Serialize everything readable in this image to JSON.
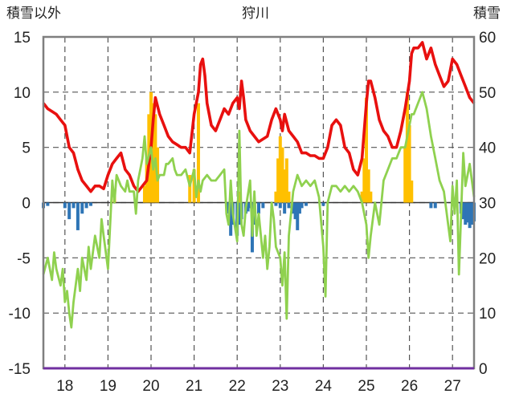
{
  "chart_data": {
    "type": "line",
    "title": "狩川",
    "ylabel_left": "積雪以外",
    "ylabel_right": "積雪",
    "ylim_left": [
      -15,
      15
    ],
    "ylim_right": [
      0,
      60
    ],
    "yticks_left": [
      "15",
      "10",
      "5",
      "0",
      "-5",
      "-10",
      "-15"
    ],
    "yticks_right": [
      "60",
      "50",
      "40",
      "30",
      "20",
      "10",
      "0"
    ],
    "xticks": [
      "18",
      "19",
      "20",
      "21",
      "22",
      "23",
      "24",
      "25",
      "26",
      "27"
    ],
    "xlim": [
      17.5,
      27.5
    ],
    "series": [
      {
        "axis": "right",
        "color": "#e8100f",
        "points": [
          [
            17.5,
            48
          ],
          [
            17.6,
            47
          ],
          [
            17.7,
            46.5
          ],
          [
            17.8,
            46
          ],
          [
            17.9,
            45
          ],
          [
            18.0,
            44
          ],
          [
            18.05,
            42
          ],
          [
            18.1,
            40
          ],
          [
            18.2,
            39
          ],
          [
            18.3,
            36
          ],
          [
            18.4,
            34
          ],
          [
            18.5,
            33
          ],
          [
            18.6,
            32
          ],
          [
            18.7,
            33
          ],
          [
            18.8,
            33
          ],
          [
            18.9,
            32.5
          ],
          [
            19.0,
            35
          ],
          [
            19.1,
            37
          ],
          [
            19.2,
            38
          ],
          [
            19.3,
            39
          ],
          [
            19.4,
            36
          ],
          [
            19.5,
            35
          ],
          [
            19.6,
            33
          ],
          [
            19.7,
            32
          ],
          [
            19.8,
            33
          ],
          [
            19.9,
            34
          ],
          [
            20.0,
            40
          ],
          [
            20.05,
            45
          ],
          [
            20.1,
            49
          ],
          [
            20.2,
            46
          ],
          [
            20.3,
            44
          ],
          [
            20.4,
            42
          ],
          [
            20.5,
            41
          ],
          [
            20.6,
            40.5
          ],
          [
            20.7,
            40
          ],
          [
            20.8,
            40
          ],
          [
            20.9,
            39
          ],
          [
            21.0,
            46
          ],
          [
            21.05,
            48
          ],
          [
            21.1,
            50
          ],
          [
            21.15,
            55
          ],
          [
            21.2,
            56
          ],
          [
            21.25,
            53
          ],
          [
            21.3,
            48
          ],
          [
            21.4,
            44
          ],
          [
            21.5,
            43
          ],
          [
            21.6,
            45
          ],
          [
            21.7,
            47
          ],
          [
            21.8,
            46
          ],
          [
            21.9,
            48
          ],
          [
            22.0,
            49
          ],
          [
            22.05,
            47
          ],
          [
            22.1,
            52
          ],
          [
            22.15,
            49
          ],
          [
            22.2,
            45
          ],
          [
            22.3,
            43
          ],
          [
            22.4,
            42
          ],
          [
            22.5,
            41
          ],
          [
            22.6,
            41.5
          ],
          [
            22.7,
            42
          ],
          [
            22.8,
            45
          ],
          [
            22.9,
            47
          ],
          [
            23.0,
            45
          ],
          [
            23.05,
            43
          ],
          [
            23.1,
            46
          ],
          [
            23.2,
            43
          ],
          [
            23.3,
            42
          ],
          [
            23.4,
            41
          ],
          [
            23.5,
            39
          ],
          [
            23.6,
            39
          ],
          [
            23.7,
            38.5
          ],
          [
            23.8,
            38.5
          ],
          [
            23.9,
            38
          ],
          [
            24.0,
            38
          ],
          [
            24.1,
            40
          ],
          [
            24.2,
            44
          ],
          [
            24.3,
            45
          ],
          [
            24.4,
            44
          ],
          [
            24.5,
            40
          ],
          [
            24.6,
            39
          ],
          [
            24.7,
            36
          ],
          [
            24.8,
            35
          ],
          [
            24.9,
            38
          ],
          [
            25.0,
            48
          ],
          [
            25.05,
            52
          ],
          [
            25.1,
            52
          ],
          [
            25.2,
            49
          ],
          [
            25.3,
            45
          ],
          [
            25.4,
            43
          ],
          [
            25.5,
            42
          ],
          [
            25.6,
            40
          ],
          [
            25.7,
            40
          ],
          [
            25.8,
            43
          ],
          [
            25.9,
            47
          ],
          [
            26.0,
            52
          ],
          [
            26.05,
            57
          ],
          [
            26.1,
            58
          ],
          [
            26.2,
            58
          ],
          [
            26.3,
            59
          ],
          [
            26.4,
            56
          ],
          [
            26.5,
            58
          ],
          [
            26.6,
            55
          ],
          [
            26.7,
            53
          ],
          [
            26.8,
            51
          ],
          [
            26.9,
            52
          ],
          [
            27.0,
            56
          ],
          [
            27.1,
            55
          ],
          [
            27.2,
            53
          ],
          [
            27.3,
            51
          ],
          [
            27.4,
            49
          ],
          [
            27.5,
            48
          ]
        ]
      },
      {
        "axis": "left",
        "color": "#8fd14f",
        "points": [
          [
            17.5,
            -6.5
          ],
          [
            17.6,
            -5
          ],
          [
            17.7,
            -7
          ],
          [
            17.75,
            -4.5
          ],
          [
            17.8,
            -6
          ],
          [
            17.9,
            -7.5
          ],
          [
            17.95,
            -6
          ],
          [
            18.0,
            -9
          ],
          [
            18.05,
            -8
          ],
          [
            18.1,
            -10
          ],
          [
            18.15,
            -11.3
          ],
          [
            18.2,
            -9
          ],
          [
            18.3,
            -6
          ],
          [
            18.35,
            -8
          ],
          [
            18.4,
            -5
          ],
          [
            18.5,
            -7
          ],
          [
            18.55,
            -4
          ],
          [
            18.6,
            -6
          ],
          [
            18.7,
            -3
          ],
          [
            18.8,
            -5
          ],
          [
            18.85,
            -1.5
          ],
          [
            18.9,
            -3
          ],
          [
            19.0,
            -6
          ],
          [
            19.05,
            -2
          ],
          [
            19.1,
            2
          ],
          [
            19.15,
            0
          ],
          [
            19.2,
            2.5
          ],
          [
            19.3,
            1.5
          ],
          [
            19.4,
            1
          ],
          [
            19.45,
            2
          ],
          [
            19.5,
            1
          ],
          [
            19.6,
            1
          ],
          [
            19.65,
            -1
          ],
          [
            19.7,
            2
          ],
          [
            19.8,
            4
          ],
          [
            19.85,
            6
          ],
          [
            19.9,
            3.5
          ],
          [
            20.0,
            5
          ],
          [
            20.05,
            3
          ],
          [
            20.1,
            4
          ],
          [
            20.15,
            2
          ],
          [
            20.2,
            2.5
          ],
          [
            20.3,
            2.5
          ],
          [
            20.35,
            3.5
          ],
          [
            20.4,
            3.5
          ],
          [
            20.5,
            4
          ],
          [
            20.55,
            3
          ],
          [
            20.6,
            2.5
          ],
          [
            20.7,
            2.5
          ],
          [
            20.8,
            3
          ],
          [
            20.9,
            1.5
          ],
          [
            21.0,
            3
          ],
          [
            21.05,
            0.5
          ],
          [
            21.1,
            2
          ],
          [
            21.15,
            1
          ],
          [
            21.2,
            2
          ],
          [
            21.3,
            2.5
          ],
          [
            21.4,
            2
          ],
          [
            21.5,
            2
          ],
          [
            21.6,
            2.5
          ],
          [
            21.7,
            3
          ],
          [
            21.75,
            -1
          ],
          [
            21.8,
            -2
          ],
          [
            21.85,
            2
          ],
          [
            21.9,
            -1
          ],
          [
            22.0,
            -3.5
          ],
          [
            22.05,
            6.5
          ],
          [
            22.1,
            -2
          ],
          [
            22.15,
            -3
          ],
          [
            22.2,
            -0.5
          ],
          [
            22.3,
            2
          ],
          [
            22.35,
            -3
          ],
          [
            22.4,
            1
          ],
          [
            22.45,
            -3
          ],
          [
            22.5,
            -1
          ],
          [
            22.6,
            -5
          ],
          [
            22.65,
            -3
          ],
          [
            22.7,
            -6
          ],
          [
            22.75,
            -4
          ],
          [
            22.8,
            0
          ],
          [
            22.85,
            -1.5
          ],
          [
            22.9,
            -4
          ],
          [
            23.0,
            -5
          ],
          [
            23.05,
            -7.5
          ],
          [
            23.1,
            -4.5
          ],
          [
            23.15,
            -10.5
          ],
          [
            23.2,
            -3
          ],
          [
            23.25,
            -1
          ],
          [
            23.3,
            1
          ],
          [
            23.4,
            2.5
          ],
          [
            23.5,
            1.5
          ],
          [
            23.6,
            2
          ],
          [
            23.7,
            1.5
          ],
          [
            23.8,
            2
          ],
          [
            23.9,
            0.5
          ],
          [
            24.0,
            -4
          ],
          [
            24.05,
            -8.5
          ],
          [
            24.1,
            0
          ],
          [
            24.2,
            1.5
          ],
          [
            24.3,
            1.5
          ],
          [
            24.4,
            1
          ],
          [
            24.5,
            1.5
          ],
          [
            24.6,
            1
          ],
          [
            24.7,
            1.5
          ],
          [
            24.8,
            1
          ],
          [
            24.9,
            0
          ],
          [
            25.0,
            -2
          ],
          [
            25.05,
            -5
          ],
          [
            25.1,
            -3
          ],
          [
            25.2,
            0
          ],
          [
            25.3,
            -2
          ],
          [
            25.4,
            2
          ],
          [
            25.5,
            3
          ],
          [
            25.6,
            4
          ],
          [
            25.7,
            4
          ],
          [
            25.8,
            5
          ],
          [
            25.9,
            5
          ],
          [
            26.0,
            7
          ],
          [
            26.05,
            8
          ],
          [
            26.1,
            8
          ],
          [
            26.2,
            9
          ],
          [
            26.25,
            9.5
          ],
          [
            26.3,
            10
          ],
          [
            26.4,
            8.5
          ],
          [
            26.5,
            6
          ],
          [
            26.6,
            4
          ],
          [
            26.7,
            2
          ],
          [
            26.8,
            1
          ],
          [
            26.9,
            -2
          ],
          [
            26.95,
            -3.5
          ],
          [
            27.0,
            1.5
          ],
          [
            27.05,
            -1
          ],
          [
            27.1,
            2
          ],
          [
            27.15,
            -6.5
          ],
          [
            27.2,
            -1
          ],
          [
            27.25,
            4.5
          ],
          [
            27.3,
            1.5
          ],
          [
            27.4,
            3.5
          ],
          [
            27.5,
            0.5
          ]
        ]
      }
    ],
    "bars_positive": {
      "axis": "left",
      "color": "#ffc000",
      "points": [
        [
          19.15,
          1
        ],
        [
          19.85,
          1.5
        ],
        [
          19.9,
          4
        ],
        [
          19.95,
          8
        ],
        [
          20.0,
          10
        ],
        [
          20.05,
          9
        ],
        [
          20.1,
          8
        ],
        [
          20.15,
          5
        ],
        [
          20.9,
          2.5
        ],
        [
          21.0,
          3
        ],
        [
          21.1,
          9
        ],
        [
          22.05,
          1
        ],
        [
          22.9,
          1
        ],
        [
          22.95,
          4
        ],
        [
          23.0,
          6
        ],
        [
          23.05,
          5
        ],
        [
          23.1,
          3
        ],
        [
          23.15,
          4
        ],
        [
          23.2,
          1
        ],
        [
          24.9,
          1
        ],
        [
          24.95,
          4
        ],
        [
          25.0,
          9.5
        ],
        [
          25.05,
          3
        ],
        [
          25.1,
          1
        ],
        [
          25.9,
          5
        ],
        [
          25.95,
          10
        ],
        [
          26.0,
          7
        ],
        [
          26.05,
          2
        ]
      ]
    },
    "bars_negative": {
      "axis": "left",
      "color": "#2e75b6",
      "points": [
        [
          17.5,
          -0.5
        ],
        [
          17.6,
          -0.3
        ],
        [
          18.0,
          -0.5
        ],
        [
          18.1,
          -1.5
        ],
        [
          18.2,
          -0.5
        ],
        [
          18.3,
          -2.5
        ],
        [
          18.4,
          -1
        ],
        [
          18.5,
          -0.5
        ],
        [
          18.6,
          -0.3
        ],
        [
          21.8,
          -1
        ],
        [
          21.85,
          -3
        ],
        [
          21.9,
          -2
        ],
        [
          22.0,
          -3
        ],
        [
          22.05,
          -2
        ],
        [
          22.1,
          -1.5
        ],
        [
          22.2,
          -1
        ],
        [
          22.25,
          -0.8
        ],
        [
          22.3,
          -0.5
        ],
        [
          22.35,
          -4.5
        ],
        [
          22.4,
          -2
        ],
        [
          22.5,
          -1
        ],
        [
          22.6,
          -0.5
        ],
        [
          22.9,
          -0.3
        ],
        [
          23.0,
          -0.5
        ],
        [
          23.1,
          -1
        ],
        [
          23.2,
          -0.5
        ],
        [
          23.3,
          -1
        ],
        [
          23.35,
          -1.5
        ],
        [
          23.4,
          -2.5
        ],
        [
          23.45,
          -1
        ],
        [
          23.5,
          -0.5
        ],
        [
          23.6,
          -0.3
        ],
        [
          24.0,
          -0.3
        ],
        [
          26.5,
          -0.5
        ],
        [
          26.6,
          -0.5
        ],
        [
          27.2,
          -1
        ],
        [
          27.25,
          -1.5
        ],
        [
          27.3,
          -2
        ],
        [
          27.35,
          -1.8
        ],
        [
          27.4,
          -2.3
        ],
        [
          27.45,
          -2
        ],
        [
          27.5,
          -1.7
        ]
      ]
    }
  }
}
